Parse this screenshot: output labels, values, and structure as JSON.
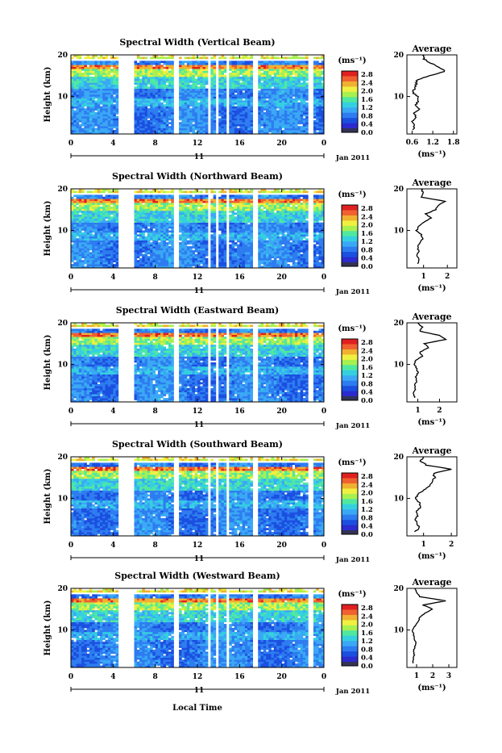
{
  "figure": {
    "xlabel": "Local Time",
    "ylabel": "Height (km)",
    "date_label": "Jan 2011",
    "day_label": "11",
    "colorbar_unit": "(ms⁻¹)",
    "colorbar_ticks": [
      "2.8",
      "2.4",
      "2.0",
      "1.6",
      "1.2",
      "0.8",
      "0.4",
      "0.0"
    ],
    "avg_title": "Average",
    "avg_xlabel": "(ms⁻¹)",
    "colors": {
      "colormap": [
        "#2b2bd0",
        "#1a4fe0",
        "#2d7cf0",
        "#3aa8f5",
        "#35d0e0",
        "#50e8a0",
        "#a8f050",
        "#f0f040",
        "#f0b030",
        "#f06030",
        "#e02020"
      ],
      "floor_color": "#333355",
      "background": "#ffffff"
    }
  },
  "chart_data": [
    {
      "type": "heatmap",
      "title": "Spectral Width (Vertical Beam)",
      "x_ticks": [
        "0",
        "4",
        "8",
        "12",
        "16",
        "20",
        "0"
      ],
      "xlim": [
        0,
        24
      ],
      "y_ticks": [
        "20",
        "10"
      ],
      "ylim": [
        1,
        20
      ],
      "data_gaps_hours": [
        [
          4.5,
          6.0
        ],
        [
          9.7,
          10.2
        ],
        [
          12.9,
          13.3
        ],
        [
          13.7,
          14.1
        ],
        [
          14.7,
          15.1
        ],
        [
          17.2,
          17.8
        ],
        [
          22.6,
          23.0
        ]
      ],
      "avg_profile": {
        "title": "Average",
        "xlabel": "(ms⁻¹)",
        "x_ticks": [
          "0.6",
          "1.2",
          "1.8"
        ],
        "x_tick_values": [
          0.6,
          1.2,
          1.8
        ],
        "xlim": [
          0.45,
          1.9
        ],
        "y_ticks": [
          "20",
          "10"
        ],
        "heights_km": [
          2,
          3,
          4,
          5,
          6,
          7,
          8,
          9,
          10,
          11,
          12,
          13,
          14,
          15,
          16,
          17,
          18,
          19,
          20
        ],
        "widths_ms": [
          0.62,
          0.68,
          0.6,
          0.72,
          0.65,
          0.8,
          0.7,
          0.78,
          0.75,
          0.62,
          0.68,
          0.72,
          0.75,
          1.1,
          1.55,
          1.4,
          1.15,
          0.95,
          0.9
        ]
      }
    },
    {
      "type": "heatmap",
      "title": "Spectral Width (Northward Beam)",
      "x_ticks": [
        "0",
        "4",
        "8",
        "12",
        "16",
        "20",
        "0"
      ],
      "xlim": [
        0,
        24
      ],
      "y_ticks": [
        "20",
        "10"
      ],
      "ylim": [
        1,
        20
      ],
      "data_gaps_hours": [
        [
          4.5,
          6.0
        ],
        [
          9.7,
          10.2
        ],
        [
          12.9,
          13.3
        ],
        [
          13.7,
          14.1
        ],
        [
          14.7,
          15.1
        ],
        [
          17.2,
          17.8
        ],
        [
          22.6,
          23.0
        ]
      ],
      "avg_profile": {
        "title": "Average",
        "xlabel": "(ms⁻¹)",
        "x_ticks": [
          "1",
          "2"
        ],
        "x_tick_values": [
          1,
          2
        ],
        "xlim": [
          0.3,
          2.4
        ],
        "y_ticks": [
          "20",
          "10"
        ],
        "heights_km": [
          2,
          3,
          4,
          5,
          6,
          7,
          8,
          9,
          10,
          11,
          12,
          13,
          14,
          15,
          16,
          17,
          18,
          19,
          20
        ],
        "widths_ms": [
          0.75,
          0.8,
          0.7,
          0.8,
          0.75,
          0.85,
          0.95,
          0.9,
          0.7,
          0.8,
          1.0,
          1.3,
          1.1,
          1.5,
          1.6,
          1.9,
          0.9,
          1.0,
          0.9
        ]
      }
    },
    {
      "type": "heatmap",
      "title": "Spectral Width (Eastward Beam)",
      "x_ticks": [
        "0",
        "4",
        "8",
        "12",
        "16",
        "20",
        "0"
      ],
      "xlim": [
        0,
        24
      ],
      "y_ticks": [
        "20",
        "10"
      ],
      "ylim": [
        1,
        20
      ],
      "data_gaps_hours": [
        [
          4.5,
          6.0
        ],
        [
          9.7,
          10.2
        ],
        [
          12.9,
          13.3
        ],
        [
          13.7,
          14.1
        ],
        [
          14.7,
          15.1
        ],
        [
          17.2,
          17.8
        ],
        [
          22.6,
          23.0
        ]
      ],
      "avg_profile": {
        "title": "Average",
        "xlabel": "(ms⁻¹)",
        "x_ticks": [
          "1",
          "2"
        ],
        "x_tick_values": [
          1,
          2
        ],
        "xlim": [
          0.5,
          2.8
        ],
        "y_ticks": [
          "20",
          "10"
        ],
        "heights_km": [
          2,
          3,
          4,
          5,
          6,
          7,
          8,
          9,
          10,
          11,
          12,
          13,
          14,
          15,
          16,
          17,
          18,
          19,
          20
        ],
        "widths_ms": [
          0.85,
          0.8,
          0.9,
          0.85,
          0.95,
          0.9,
          1.0,
          0.95,
          0.85,
          0.9,
          1.2,
          1.1,
          1.5,
          1.3,
          2.3,
          2.0,
          1.1,
          1.2,
          1.0
        ]
      }
    },
    {
      "type": "heatmap",
      "title": "Spectral Width (Southward Beam)",
      "x_ticks": [
        "0",
        "4",
        "8",
        "12",
        "16",
        "20",
        "0"
      ],
      "xlim": [
        0,
        24
      ],
      "y_ticks": [
        "20",
        "10"
      ],
      "ylim": [
        1,
        20
      ],
      "data_gaps_hours": [
        [
          4.5,
          6.0
        ],
        [
          9.7,
          10.2
        ],
        [
          12.9,
          13.3
        ],
        [
          13.7,
          14.1
        ],
        [
          14.7,
          15.1
        ],
        [
          17.2,
          17.8
        ],
        [
          22.6,
          23.0
        ]
      ],
      "avg_profile": {
        "title": "Average",
        "xlabel": "(ms⁻¹)",
        "x_ticks": [
          "1",
          "2"
        ],
        "x_tick_values": [
          1,
          2
        ],
        "xlim": [
          0.4,
          2.2
        ],
        "y_ticks": [
          "20",
          "10"
        ],
        "heights_km": [
          2,
          3,
          4,
          5,
          6,
          7,
          8,
          9,
          10,
          11,
          12,
          13,
          14,
          15,
          16,
          17,
          18,
          19,
          20
        ],
        "widths_ms": [
          0.7,
          0.85,
          0.75,
          0.7,
          0.8,
          0.75,
          0.9,
          0.85,
          0.7,
          0.8,
          1.0,
          1.2,
          1.3,
          1.4,
          1.35,
          2.0,
          1.1,
          0.9,
          1.0
        ]
      }
    },
    {
      "type": "heatmap",
      "title": "Spectral Width (Westward Beam)",
      "x_ticks": [
        "0",
        "4",
        "8",
        "12",
        "16",
        "20",
        "0"
      ],
      "xlim": [
        0,
        24
      ],
      "y_ticks": [
        "20",
        "10"
      ],
      "ylim": [
        1,
        20
      ],
      "data_gaps_hours": [
        [
          4.5,
          6.0
        ],
        [
          9.7,
          10.2
        ],
        [
          12.9,
          13.3
        ],
        [
          13.7,
          14.1
        ],
        [
          14.7,
          15.1
        ],
        [
          17.2,
          17.8
        ],
        [
          22.6,
          23.0
        ]
      ],
      "avg_profile": {
        "title": "Average",
        "xlabel": "(ms⁻¹)",
        "x_ticks": [
          "1",
          "2",
          "3"
        ],
        "x_tick_values": [
          1,
          2,
          3
        ],
        "xlim": [
          0.4,
          3.5
        ],
        "y_ticks": [
          "20",
          "10"
        ],
        "heights_km": [
          2,
          3,
          4,
          5,
          6,
          7,
          8,
          9,
          10,
          11,
          12,
          13,
          14,
          15,
          16,
          17,
          18,
          19,
          20
        ],
        "widths_ms": [
          0.75,
          0.8,
          0.85,
          0.8,
          0.9,
          0.95,
          0.85,
          0.8,
          0.75,
          0.9,
          1.1,
          1.2,
          1.5,
          2.0,
          1.4,
          2.8,
          1.2,
          1.0,
          0.9
        ]
      }
    }
  ]
}
